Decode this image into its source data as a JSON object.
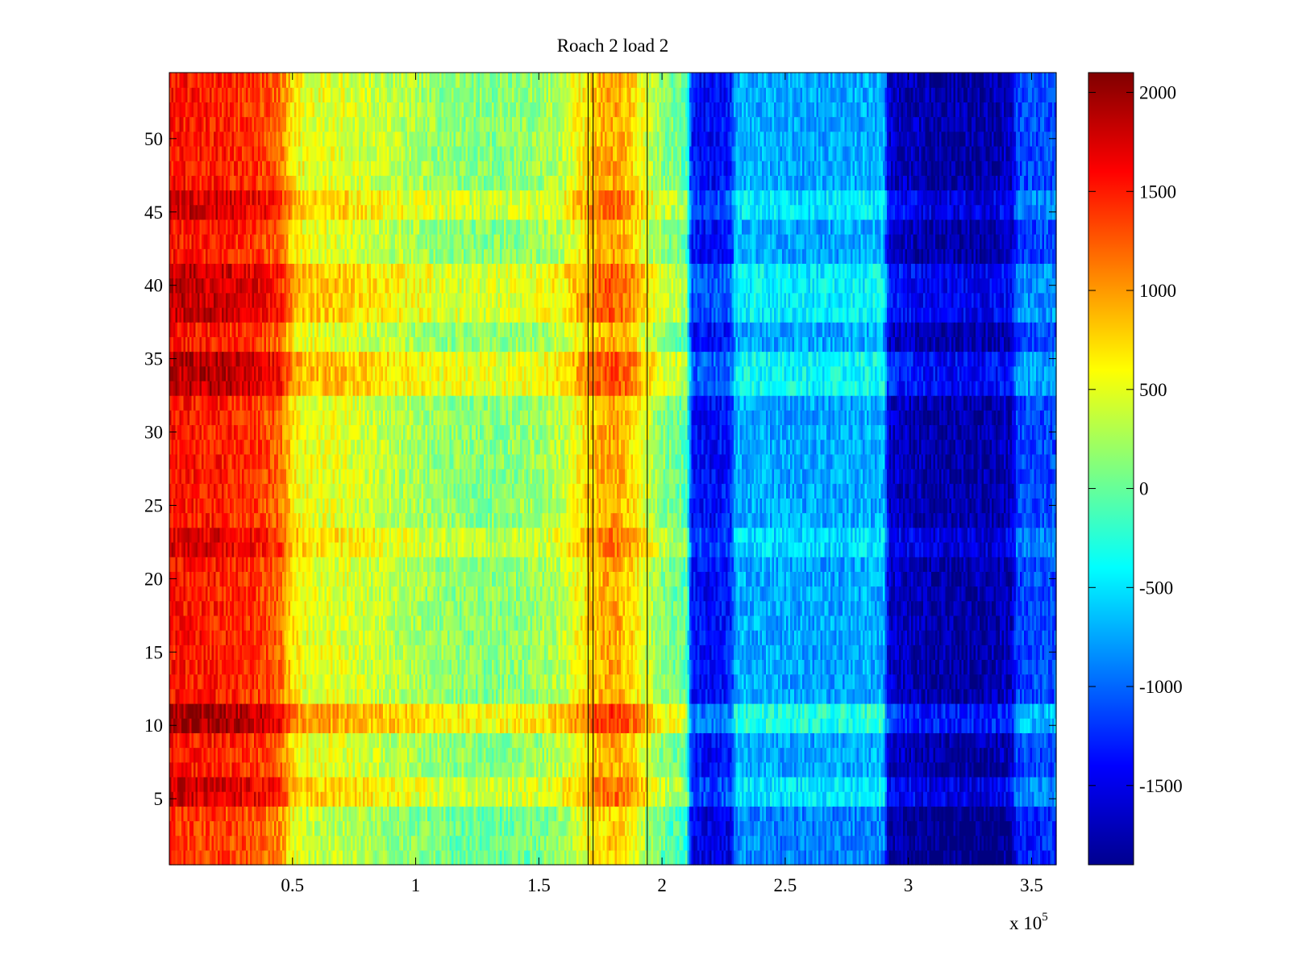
{
  "chart_data": {
    "type": "heatmap",
    "title": "Roach 2 load 2",
    "xlabel": "",
    "ylabel": "",
    "x_exponent_label": "x 10",
    "x_exponent": "5",
    "xlim": [
      0,
      3.6
    ],
    "ylim": [
      0.5,
      54.5
    ],
    "x_ticks": [
      0.5,
      1,
      1.5,
      2,
      2.5,
      3,
      3.5
    ],
    "x_tick_labels": [
      "0.5",
      "1",
      "1.5",
      "2",
      "2.5",
      "3",
      "3.5"
    ],
    "y_ticks": [
      5,
      10,
      15,
      20,
      25,
      30,
      35,
      40,
      45,
      50
    ],
    "y_tick_labels": [
      "5",
      "10",
      "15",
      "20",
      "25",
      "30",
      "35",
      "40",
      "45",
      "50"
    ],
    "rows": 54,
    "colorbar": {
      "colormap": "jet",
      "clim": [
        -1900,
        2100
      ],
      "ticks": [
        2000,
        1500,
        1000,
        500,
        0,
        -500,
        -1000,
        -1500
      ],
      "tick_labels": [
        "2000",
        "1500",
        "1000",
        "500",
        "0",
        "-500",
        "-1000",
        "-1500"
      ]
    },
    "column_profile": {
      "x": [
        0,
        0.2,
        0.35,
        0.45,
        0.5,
        0.55,
        0.7,
        0.9,
        1.1,
        1.3,
        1.5,
        1.6,
        1.65,
        1.7,
        1.72,
        1.75,
        1.8,
        1.85,
        1.9,
        1.95,
        2.0,
        2.05,
        2.1,
        2.12,
        2.2,
        2.28,
        2.3,
        2.5,
        2.7,
        2.9,
        2.92,
        3.1,
        3.3,
        3.42,
        3.44,
        3.6
      ],
      "values": [
        1550,
        1500,
        1400,
        1200,
        700,
        520,
        480,
        330,
        180,
        120,
        200,
        350,
        550,
        700,
        800,
        900,
        950,
        850,
        650,
        350,
        150,
        50,
        -50,
        -1350,
        -1400,
        -1300,
        -700,
        -750,
        -750,
        -700,
        -1600,
        -1750,
        -1750,
        -1650,
        -1150,
        -1100
      ]
    },
    "row_offsets": [
      {
        "rows": [
          10,
          11
        ],
        "delta": 450
      },
      {
        "rows": [
          33,
          34,
          35
        ],
        "delta": 350
      },
      {
        "rows": [
          38,
          39,
          40,
          41
        ],
        "delta": 300
      },
      {
        "rows": [
          22,
          23
        ],
        "delta": 200
      },
      {
        "rows": [
          5,
          6
        ],
        "delta": 250
      },
      {
        "rows": [
          45,
          46
        ],
        "delta": 250
      },
      {
        "rows": [
          1,
          2,
          3,
          4
        ],
        "delta": -150
      }
    ],
    "vertical_lines_x": [
      1.7,
      1.72,
      1.94
    ]
  }
}
